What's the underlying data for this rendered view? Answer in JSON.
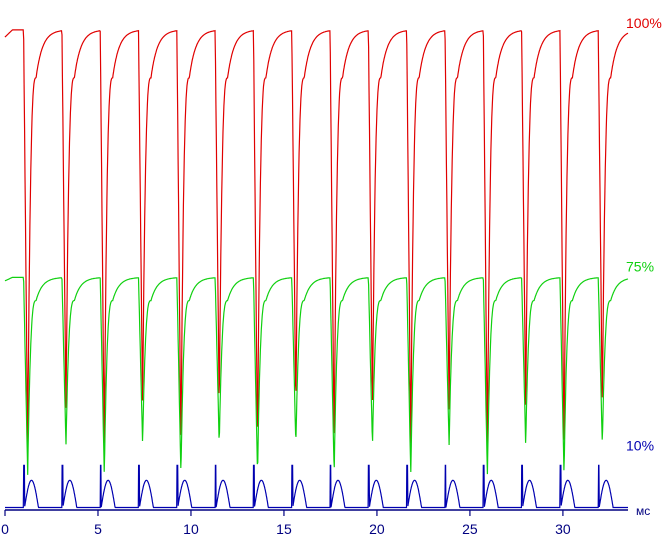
{
  "chart_data": {
    "type": "line",
    "title": "",
    "xlabel": "мс",
    "ylabel": "",
    "xlim": [
      0,
      33.5
    ],
    "ylim": [
      0,
      1
    ],
    "x_ticks": [
      0,
      5,
      10,
      15,
      20,
      25,
      30
    ],
    "x_tick_labels": [
      "0",
      "5",
      "10",
      "15",
      "20",
      "25",
      "30"
    ],
    "grid": false,
    "legend": "right-side labels",
    "period_ms": 2.06,
    "first_drop_ms": 1.0,
    "series": [
      {
        "name": "100%",
        "color": "#e00000",
        "high": 0.97,
        "low": 0.12,
        "low_alternate": [
          0.12,
          0.2
        ]
      },
      {
        "name": "75%",
        "color": "#10d010",
        "high": 0.47,
        "low": 0.07,
        "low_alternate": [
          0.07,
          0.13
        ]
      },
      {
        "name": "10%",
        "color": "#0000b0",
        "high": 0.06,
        "low": 0.005,
        "spike": 0.09
      }
    ]
  }
}
